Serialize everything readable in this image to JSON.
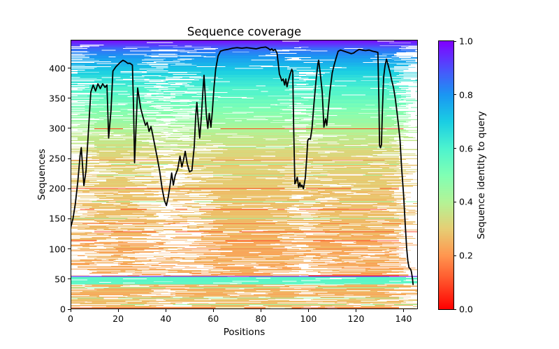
{
  "figure": {
    "title": "Sequence coverage",
    "background": "#ffffff"
  },
  "axes": {
    "xlabel": "Positions",
    "ylabel": "Sequences",
    "xlim": [
      0,
      146
    ],
    "ylim": [
      0,
      447
    ],
    "x_ticks": [
      "0",
      "20",
      "40",
      "60",
      "80",
      "100",
      "120",
      "140"
    ],
    "y_ticks": [
      "0",
      "50",
      "100",
      "150",
      "200",
      "250",
      "300",
      "350",
      "400"
    ],
    "text_color": "#000000",
    "spine_color": "#000000"
  },
  "colorbar": {
    "label": "Sequence identity to query",
    "ticks": [
      "0.0",
      "0.2",
      "0.4",
      "0.6",
      "0.8",
      "1.0"
    ],
    "vmin": 0.0,
    "vmax": 1.0,
    "colormap": "rainbow_r",
    "stops": [
      [
        0.0,
        "#ff0000"
      ],
      [
        0.1,
        "#ff4f28"
      ],
      [
        0.2,
        "#ff964f"
      ],
      [
        0.3,
        "#e6ce74"
      ],
      [
        0.4,
        "#b3f396"
      ],
      [
        0.5,
        "#80ffb4"
      ],
      [
        0.6,
        "#4df3ce"
      ],
      [
        0.7,
        "#1acee3"
      ],
      [
        0.8,
        "#1a96f2"
      ],
      [
        0.9,
        "#4d4ffc"
      ],
      [
        1.0,
        "#8000ff"
      ]
    ]
  },
  "chart_data": {
    "type": "heatmap",
    "subtype": "msa-coverage-with-line",
    "title": "Sequence coverage",
    "xlabel": "Positions",
    "ylabel": "Sequences",
    "legend_position": "right-colorbar",
    "grid": false,
    "n_positions": 146,
    "n_sequences": 447,
    "coverage_line": {
      "color": "#000000",
      "width": 1.8,
      "x": [
        0,
        1,
        2,
        3,
        4,
        4.5,
        5,
        5.6,
        6.5,
        7.5,
        8.5,
        9.5,
        10.5,
        11.5,
        12.5,
        13.5,
        14.5,
        15.3,
        16,
        17,
        17.8,
        19,
        20,
        21,
        22,
        23,
        24,
        25,
        26,
        26.5,
        26.9,
        27.5,
        28.2,
        29.5,
        30.5,
        31.5,
        32.2,
        33,
        33.8,
        34.5,
        35.5,
        36.5,
        37.5,
        38.5,
        39.5,
        40.3,
        41,
        41.8,
        42.5,
        43.2,
        44,
        45,
        46,
        46.8,
        47.5,
        48.2,
        49,
        50,
        51,
        52,
        52.6,
        53.1,
        53.7,
        54.3,
        55,
        55.6,
        56.1,
        56.6,
        57.1,
        57.7,
        58.3,
        59,
        59.6,
        60.3,
        61,
        62,
        63,
        64.5,
        66,
        68,
        70,
        72,
        74,
        76,
        78,
        80,
        82,
        83,
        84,
        84.6,
        85.2,
        86,
        86.8,
        87.3,
        87.8,
        88.3,
        88.8,
        89.4,
        90,
        90.5,
        91,
        91.5,
        92.3,
        93,
        93.4,
        93.8,
        94.3,
        95,
        95.3,
        95.9,
        96.4,
        96.8,
        97.3,
        97.9,
        98.7,
        99.3,
        99.7,
        100.2,
        100.8,
        101.5,
        102.3,
        103.2,
        104,
        104.3,
        105,
        105.8,
        106.5,
        107.2,
        107.7,
        108.3,
        109,
        110,
        110.8,
        111.5,
        112.5,
        113.5,
        115,
        116.5,
        118,
        119,
        120,
        121.3,
        122.5,
        124,
        125.5,
        127,
        128.3,
        129.2,
        129.6,
        129.9,
        130.3,
        130.7,
        131.1,
        131.6,
        132.2,
        132.8,
        133.5,
        134.3,
        135,
        135.8,
        136.5,
        137.2,
        138,
        138.5,
        139.2,
        140,
        140.7,
        141.3,
        141.8,
        142.3,
        143,
        143.3,
        143.7,
        144
      ],
      "y": [
        135,
        150,
        175,
        210,
        255,
        268,
        240,
        205,
        230,
        295,
        360,
        372,
        362,
        374,
        366,
        374,
        368,
        372,
        284,
        330,
        395,
        402,
        406,
        410,
        413,
        411,
        408,
        408,
        405,
        330,
        243,
        300,
        367,
        333,
        318,
        305,
        310,
        295,
        303,
        290,
        270,
        250,
        228,
        200,
        180,
        172,
        185,
        205,
        226,
        206,
        222,
        232,
        254,
        236,
        248,
        262,
        242,
        228,
        230,
        270,
        320,
        343,
        310,
        284,
        320,
        360,
        388,
        355,
        322,
        300,
        325,
        302,
        328,
        368,
        398,
        420,
        428,
        430,
        431,
        433,
        434,
        433,
        434,
        433,
        432,
        434,
        435,
        433,
        430,
        432,
        429,
        431,
        425,
        408,
        390,
        385,
        379,
        382,
        372,
        382,
        369,
        378,
        390,
        398,
        394,
        300,
        208,
        215,
        219,
        202,
        210,
        203,
        206,
        200,
        218,
        252,
        280,
        283,
        282,
        300,
        340,
        380,
        408,
        413,
        390,
        360,
        302,
        316,
        305,
        330,
        360,
        392,
        405,
        415,
        428,
        430,
        428,
        426,
        424,
        425,
        428,
        431,
        430,
        429,
        430,
        428,
        427,
        426,
        350,
        272,
        268,
        273,
        330,
        384,
        404,
        415,
        405,
        393,
        380,
        367,
        350,
        328,
        300,
        281,
        233,
        190,
        140,
        101,
        80,
        69,
        66,
        62,
        52,
        41
      ]
    },
    "identity_bands": [
      {
        "r0": 0,
        "r1": 41,
        "v0": 0.27,
        "v1": 0.25,
        "jitter": 0.035
      },
      {
        "r0": 41,
        "r1": 54,
        "v0": 0.57,
        "v1": 0.57,
        "jitter": 0.012
      },
      {
        "r0": 54,
        "r1": 55,
        "v0": 1.0,
        "v1": 1.0,
        "jitter": 0.0
      },
      {
        "r0": 55,
        "r1": 255,
        "v0": 0.225,
        "v1": 0.315,
        "jitter": 0.03
      },
      {
        "r0": 255,
        "r1": 295,
        "v0": 0.315,
        "v1": 0.4,
        "jitter": 0.025
      },
      {
        "r0": 295,
        "r1": 330,
        "v0": 0.4,
        "v1": 0.5,
        "jitter": 0.02
      },
      {
        "r0": 330,
        "r1": 365,
        "v0": 0.5,
        "v1": 0.6,
        "jitter": 0.018
      },
      {
        "r0": 365,
        "r1": 400,
        "v0": 0.6,
        "v1": 0.72,
        "jitter": 0.015
      },
      {
        "r0": 400,
        "r1": 430,
        "v0": 0.72,
        "v1": 0.85,
        "jitter": 0.012
      },
      {
        "r0": 430,
        "r1": 447,
        "v0": 0.85,
        "v1": 1.0,
        "jitter": 0.008
      }
    ],
    "red_rows": {
      "rows": [
        2,
        100,
        113,
        128,
        141,
        165,
        200,
        247,
        299
      ],
      "identity": 0.09
    },
    "green_rows": {
      "rows": [
        7,
        18,
        35,
        150,
        178,
        222,
        240,
        268
      ],
      "identity": 0.45
    },
    "query_row": {
      "row": 54,
      "identity": 1.0
    },
    "teal_band": {
      "r0": 41,
      "r1": 53,
      "identity": 0.57
    },
    "red_segment": {
      "row": 55,
      "x0": 100,
      "x1": 138,
      "identity": 0.05
    },
    "mask_seed": 20240613
  }
}
